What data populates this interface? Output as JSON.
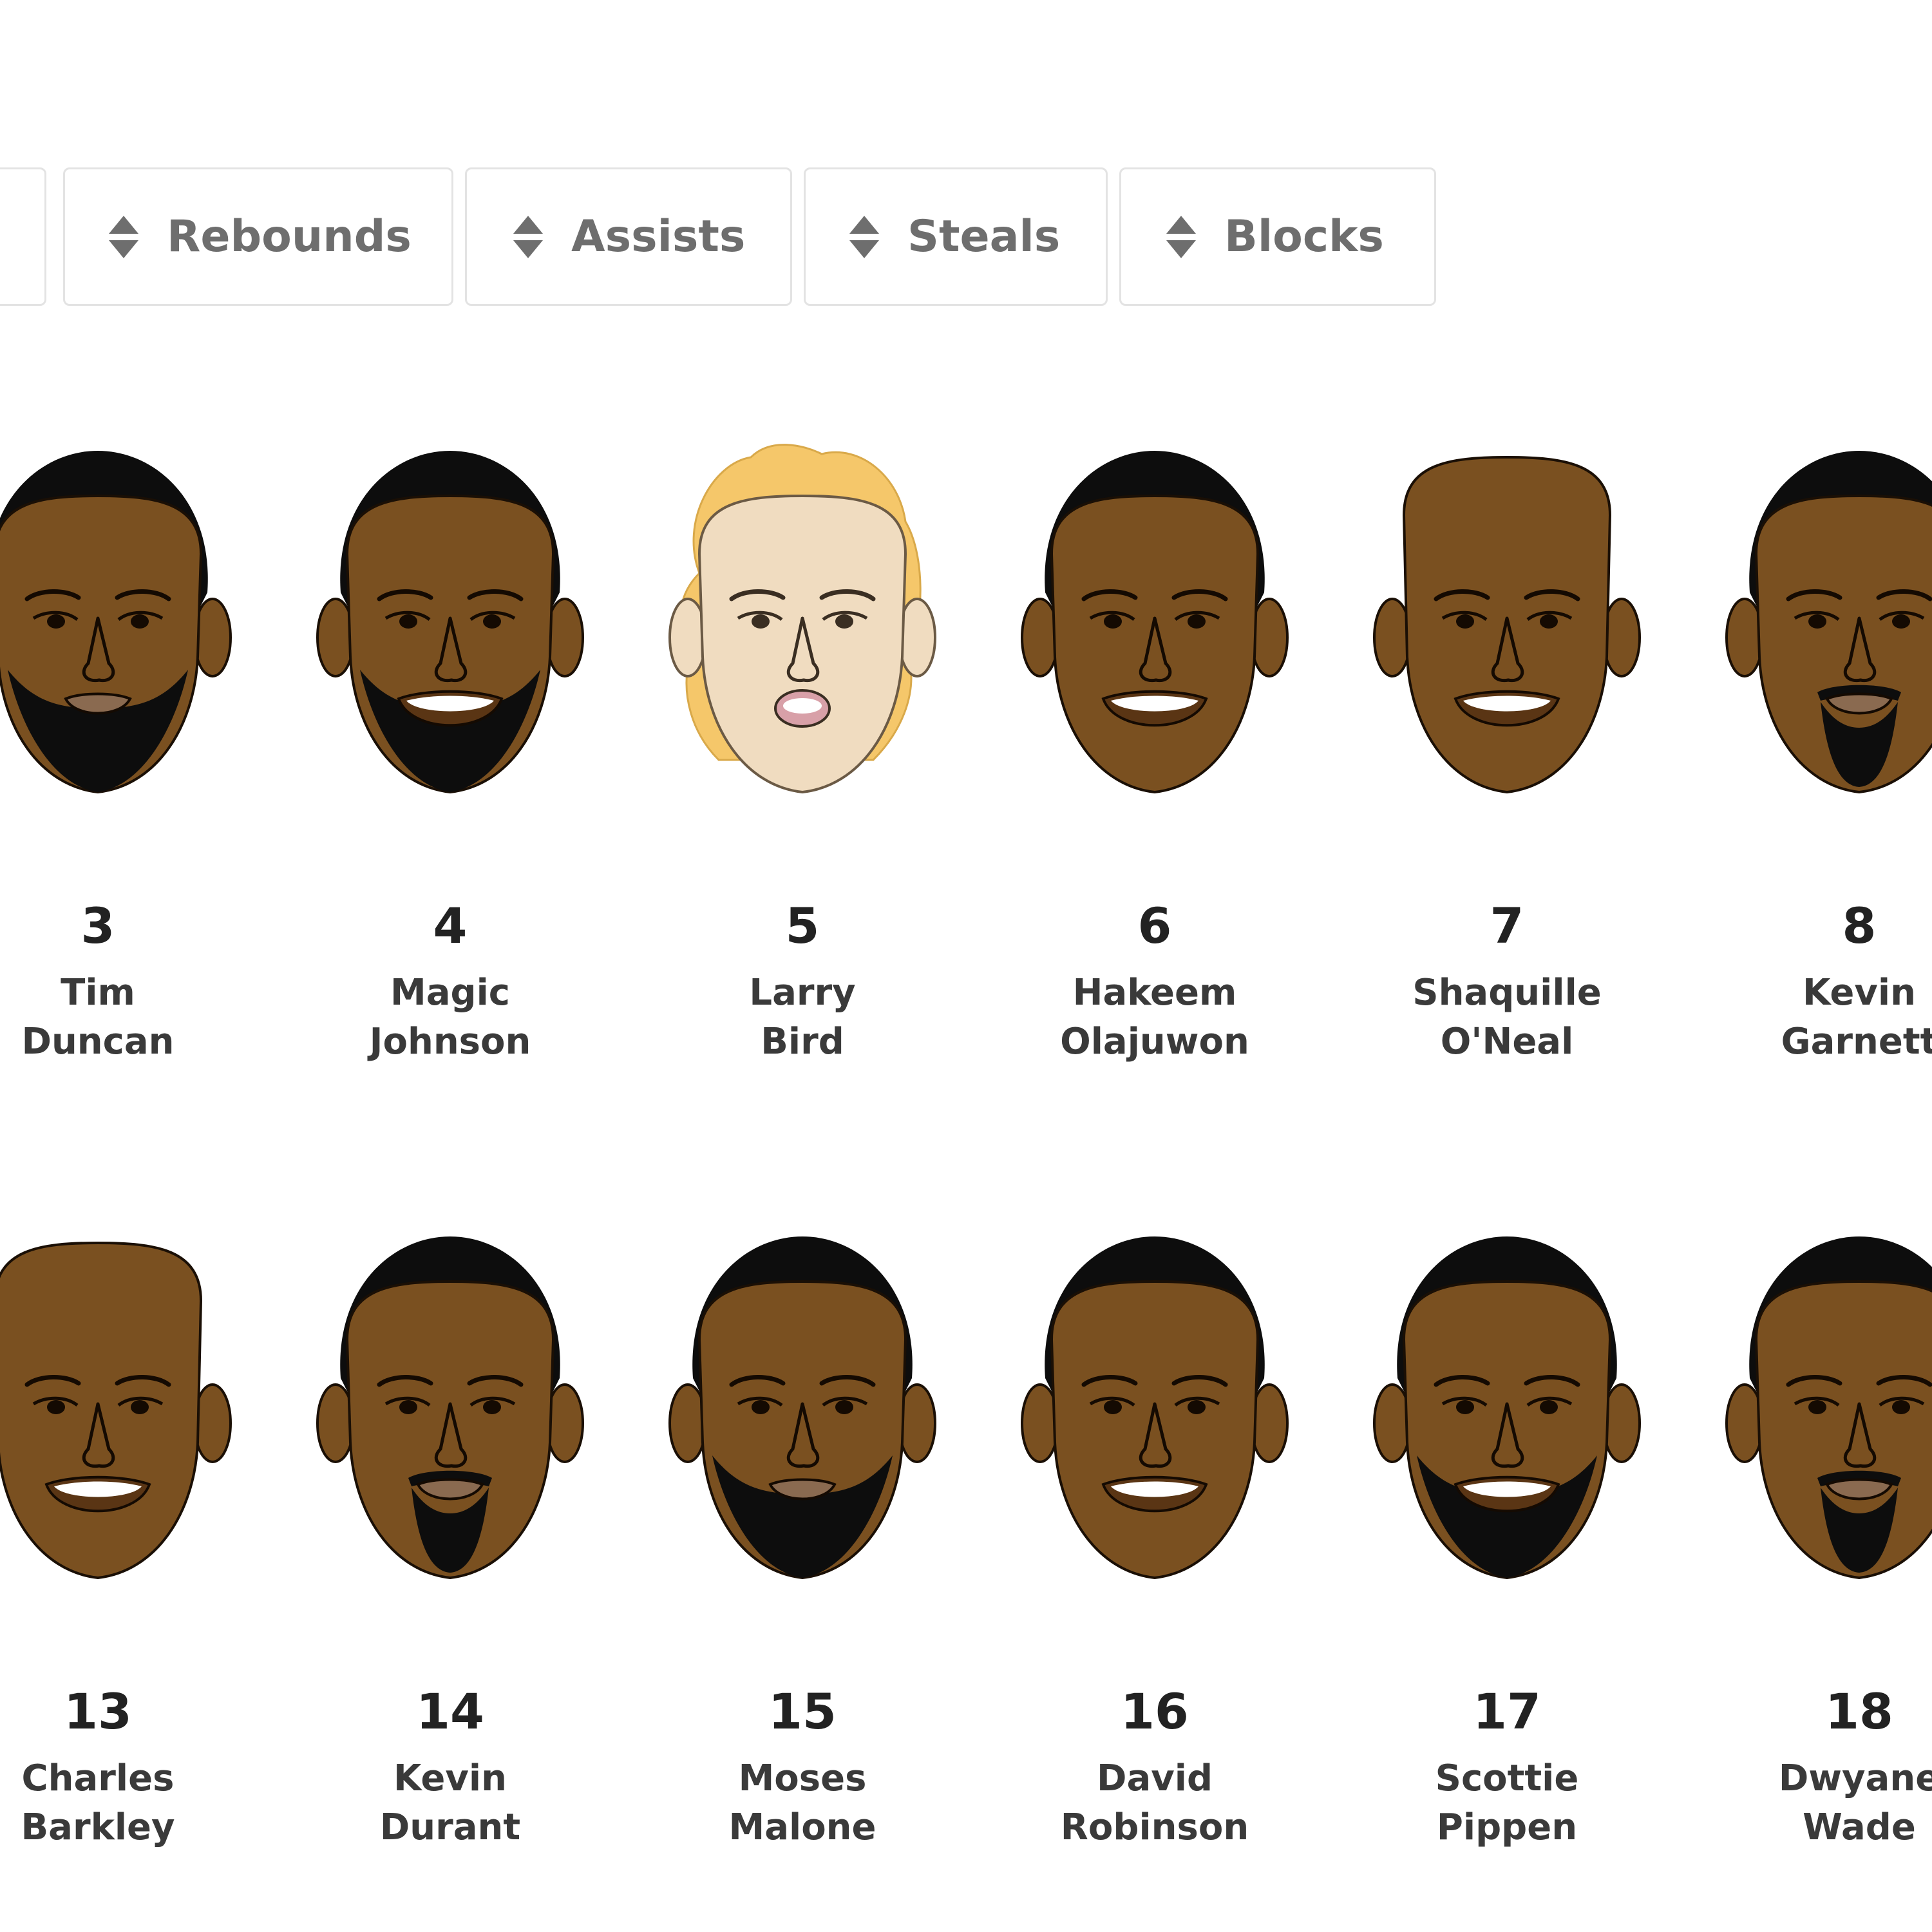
{
  "sort_buttons": [
    {
      "label": "",
      "icon": "sort-arrows-icon"
    },
    {
      "label": "Rebounds",
      "icon": "sort-arrows-icon"
    },
    {
      "label": "Assists",
      "icon": "sort-arrows-icon"
    },
    {
      "label": "Steals",
      "icon": "sort-arrows-icon"
    },
    {
      "label": "Blocks",
      "icon": "sort-arrows-icon"
    }
  ],
  "players": [
    {
      "rank": "3",
      "first": "Tim",
      "last": "Duncan",
      "style": "beard"
    },
    {
      "rank": "4",
      "first": "Magic",
      "last": "Johnson",
      "style": "smile-beard"
    },
    {
      "rank": "5",
      "first": "Larry",
      "last": "Bird",
      "style": "blonde"
    },
    {
      "rank": "6",
      "first": "Hakeem",
      "last": "Olajuwon",
      "style": "smile"
    },
    {
      "rank": "7",
      "first": "Shaquille",
      "last": "O'Neal",
      "style": "bald-smile"
    },
    {
      "rank": "8",
      "first": "Kevin",
      "last": "Garnett",
      "style": "goatee"
    },
    {
      "rank": "13",
      "first": "Charles",
      "last": "Barkley",
      "style": "bald-smile"
    },
    {
      "rank": "14",
      "first": "Kevin",
      "last": "Durant",
      "style": "goatee"
    },
    {
      "rank": "15",
      "first": "Moses",
      "last": "Malone",
      "style": "beard"
    },
    {
      "rank": "16",
      "first": "David",
      "last": "Robinson",
      "style": "smile"
    },
    {
      "rank": "17",
      "first": "Scottie",
      "last": "Pippen",
      "style": "smile-beard"
    },
    {
      "rank": "18",
      "first": "Dwyane",
      "last": "Wade",
      "style": "goatee"
    }
  ],
  "colors": {
    "skin_dark": "#7a5020",
    "skin_light": "#f0dcc0",
    "hair_dark": "#0d0d0d",
    "hair_blonde": "#f5c76a",
    "button_text": "#6e6e6e",
    "button_border": "#e3e3e3"
  }
}
